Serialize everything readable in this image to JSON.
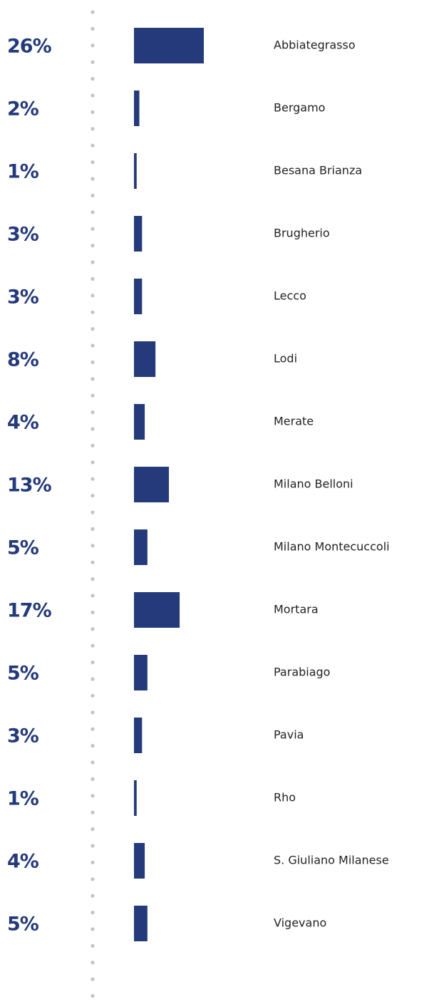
{
  "chart_data": {
    "type": "bar",
    "color": "#243a7a",
    "categories": [
      "Abbiategrasso",
      "Bergamo",
      "Besana Brianza",
      "Brugherio",
      "Lecco",
      "Lodi",
      "Merate",
      "Milano Belloni",
      "Milano Montecuccoli",
      "Mortara",
      "Parabiago",
      "Pavia",
      "Rho",
      "S. Giuliano Milanese",
      "Vigevano"
    ],
    "values": [
      26,
      2,
      1,
      3,
      3,
      8,
      4,
      13,
      5,
      17,
      5,
      3,
      1,
      4,
      5
    ],
    "value_labels": [
      "26%",
      "2%",
      "1%",
      "3%",
      "3%",
      "8%",
      "4%",
      "13%",
      "5%",
      "17%",
      "5%",
      "3%",
      "1%",
      "4%",
      "5%"
    ]
  }
}
